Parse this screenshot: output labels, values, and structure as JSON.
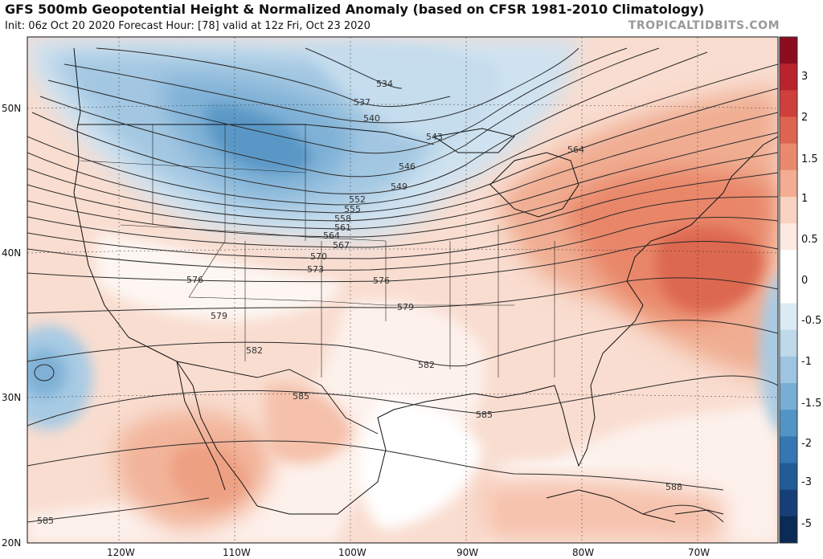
{
  "header": {
    "title": "GFS 500mb Geopotential Height & Normalized Anomaly (based on CFSR 1981-2010 Climatology)",
    "subtitle": "Init: 06z Oct 20 2020   Forecast Hour: [78]   valid at 12z Fri, Oct 23 2020",
    "brand": "TROPICALTIDBITS.COM"
  },
  "axes": {
    "lat_labels": [
      "50N",
      "40N",
      "30N",
      "20N"
    ],
    "lon_labels": [
      "120W",
      "110W",
      "100W",
      "90W",
      "80W",
      "70W"
    ]
  },
  "colorbar": {
    "labels": [
      "3",
      "2",
      "1.5",
      "1",
      "0.5",
      "0",
      "-0.5",
      "-1",
      "-1.5",
      "-2",
      "-3",
      "-5"
    ],
    "colors": [
      "#8b0d1f",
      "#b8232e",
      "#cf3f3c",
      "#dd6550",
      "#e98a6d",
      "#f2ad92",
      "#f8d2c2",
      "#fce9e1",
      "#ffffff",
      "#ffffff",
      "#dceaf4",
      "#bfd8ea",
      "#9dc4e0",
      "#78aed4",
      "#5394c6",
      "#3477b2",
      "#215c98",
      "#153f76",
      "#0b2a55"
    ]
  },
  "contours": {
    "labels": [
      "534",
      "537",
      "540",
      "543",
      "546",
      "549",
      "552",
      "555",
      "558",
      "561",
      "564",
      "567",
      "570",
      "573",
      "576",
      "579",
      "582",
      "585",
      "588"
    ],
    "placed": [
      {
        "v": "534"
      },
      {
        "v": "537"
      },
      {
        "v": "540"
      },
      {
        "v": "543"
      },
      {
        "v": "546"
      },
      {
        "v": "549"
      },
      {
        "v": "552"
      },
      {
        "v": "555"
      },
      {
        "v": "558"
      },
      {
        "v": "561"
      },
      {
        "v": "564"
      },
      {
        "v": "567"
      },
      {
        "v": "570"
      },
      {
        "v": "573"
      },
      {
        "v": "576"
      },
      {
        "v": "576"
      },
      {
        "v": "579"
      },
      {
        "v": "579"
      },
      {
        "v": "582"
      },
      {
        "v": "582"
      },
      {
        "v": "585"
      },
      {
        "v": "585"
      },
      {
        "v": "585"
      },
      {
        "v": "588"
      },
      {
        "v": "564"
      }
    ]
  }
}
